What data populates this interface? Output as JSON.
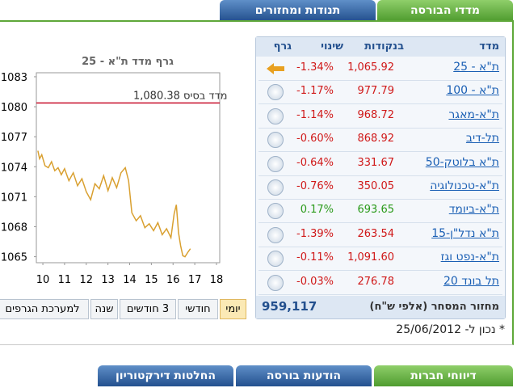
{
  "tabs_top": [
    "מדדי הבורסה",
    "תנודות ומחזורים"
  ],
  "table": {
    "headers": [
      "מדד",
      "בנקודות",
      "שינוי",
      "גרף"
    ],
    "selected_row": 0,
    "rows": [
      [
        "ת\"א - 25",
        "1,065.92",
        "-1.34%"
      ],
      [
        "ת\"א - 100",
        "977.79",
        "-1.17%"
      ],
      [
        "ת\"א-מאגר",
        "968.72",
        "-1.14%"
      ],
      [
        "תל-דיב",
        "868.92",
        "-0.60%"
      ],
      [
        "ת\"א בלוטק-50",
        "331.67",
        "-0.64%"
      ],
      [
        "ת\"א-טכנולוגיה",
        "350.05",
        "-0.76%"
      ],
      [
        "ת\"א-ביומד",
        "693.65",
        "0.17%"
      ],
      [
        "ת\"א נדל\"ן-15",
        "263.54",
        "-1.39%"
      ],
      [
        "ת\"א-נפט וגז",
        "1,091.60",
        "-0.11%"
      ],
      [
        "תל בונד 20",
        "276.78",
        "-0.03%"
      ]
    ],
    "turnover_label": "מחזור המסחר (אלפי ש\"ח)",
    "turnover_value": "959,117",
    "note": "* נכון ל- 25/06/2012"
  },
  "chart": {
    "type": "line",
    "title": "גרף מדד ת\"א - 25",
    "color": "#d9a030",
    "baseline": {
      "value": 1080.38,
      "label": "מדד בסיס 1,080.38"
    },
    "xlim": [
      9.7,
      18.15
    ],
    "xticks": [
      10,
      11,
      12,
      13,
      14,
      15,
      16,
      17,
      18
    ],
    "ylim": [
      1064.4,
      1083.4
    ],
    "yticks": [
      1083,
      1080,
      1077,
      1074,
      1071,
      1068,
      1065
    ],
    "x": [
      9.77,
      9.85,
      9.95,
      10.1,
      10.25,
      10.4,
      10.55,
      10.7,
      10.85,
      11.0,
      11.2,
      11.4,
      11.6,
      11.8,
      12.0,
      12.2,
      12.4,
      12.6,
      12.8,
      13.0,
      13.2,
      13.4,
      13.6,
      13.8,
      13.95,
      14.1,
      14.3,
      14.5,
      14.7,
      14.9,
      15.1,
      15.3,
      15.5,
      15.7,
      15.9,
      16.05,
      16.15,
      16.25,
      16.35,
      16.45,
      16.55,
      16.7,
      16.8
    ],
    "values": [
      1075.6,
      1074.8,
      1075.2,
      1074.1,
      1073.9,
      1074.5,
      1073.6,
      1073.9,
      1073.2,
      1073.8,
      1072.6,
      1073.4,
      1072.1,
      1072.8,
      1071.5,
      1070.7,
      1072.3,
      1071.8,
      1073.1,
      1071.6,
      1072.9,
      1071.9,
      1073.4,
      1073.9,
      1072.6,
      1069.4,
      1068.6,
      1069.1,
      1067.9,
      1068.3,
      1067.6,
      1068.4,
      1067.2,
      1067.8,
      1066.9,
      1069.3,
      1070.2,
      1067.4,
      1066.1,
      1065.1,
      1065.0,
      1065.5,
      1065.8
    ]
  },
  "range_buttons": [
    "יומי",
    "חודשי",
    "3 חודשים",
    "שנה",
    "למערכת הגרפים"
  ],
  "selected_range": 0,
  "tabs_bottom": [
    "דיווחי חברות",
    "הודעות בורסה",
    "החלטות דירקטוריון"
  ]
}
